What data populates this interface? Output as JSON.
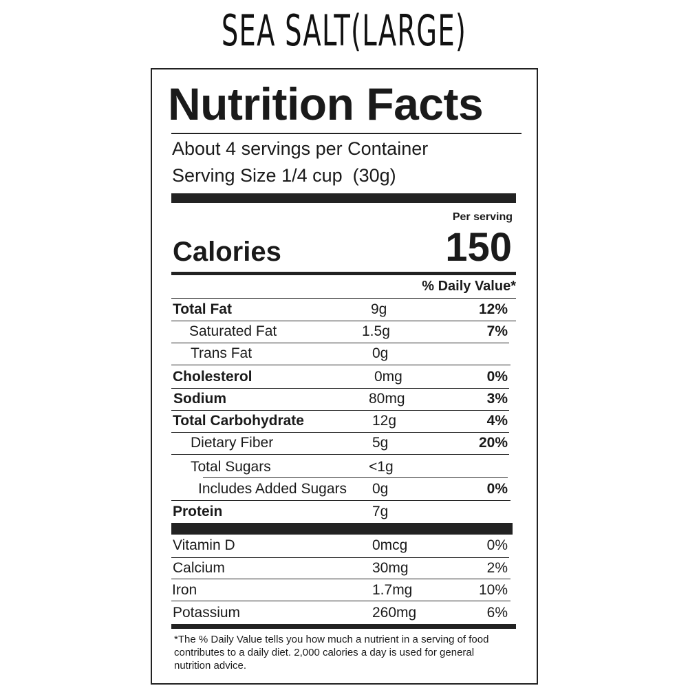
{
  "product_title": "SEA SALT(LARGE)",
  "label": {
    "heading": "Nutrition Facts",
    "servings_per_container": "About 4 servings per Container",
    "serving_size": "Serving Size 1/4 cup  (30g)",
    "per_serving": "Per serving",
    "calories_label": "Calories",
    "calories_value": "150",
    "daily_value_header": "% Daily Value*",
    "nutrients": [
      {
        "name": "Total Fat",
        "amount": "9g",
        "dv": "12%",
        "bold": true
      },
      {
        "name": "Saturated Fat",
        "amount": "1.5g",
        "dv": "7%",
        "bold": false
      },
      {
        "name": "Trans Fat",
        "amount": "0g",
        "dv": "",
        "bold": false
      },
      {
        "name": "Cholesterol",
        "amount": "0mg",
        "dv": "0%",
        "bold": true
      },
      {
        "name": "Sodium",
        "amount": "80mg",
        "dv": "3%",
        "bold": true
      },
      {
        "name": "Total Carbohydrate",
        "amount": "12g",
        "dv": "4%",
        "bold": true
      },
      {
        "name": "Dietary Fiber",
        "amount": "5g",
        "dv": "20%",
        "bold": false
      },
      {
        "name": "Total Sugars",
        "amount": "<1g",
        "dv": "",
        "bold": false
      },
      {
        "name": "Includes Added Sugars",
        "amount": "0g",
        "dv": "0%",
        "bold": false
      },
      {
        "name": "Protein",
        "amount": "7g",
        "dv": "",
        "bold": true
      }
    ],
    "vitamins": [
      {
        "name": "Vitamin D",
        "amount": "0mcg",
        "dv": "0%"
      },
      {
        "name": "Calcium",
        "amount": "30mg",
        "dv": "2%"
      },
      {
        "name": "Iron",
        "amount": "1.7mg",
        "dv": "10%"
      },
      {
        "name": "Potassium",
        "amount": "260mg",
        "dv": "6%"
      }
    ],
    "footnote_lines": [
      "*The % Daily Value tells you how much a nutrient in a serving of food",
      "contributes to a daily diet. 2,000 calories a day is used for general",
      "nutrition advice."
    ]
  }
}
